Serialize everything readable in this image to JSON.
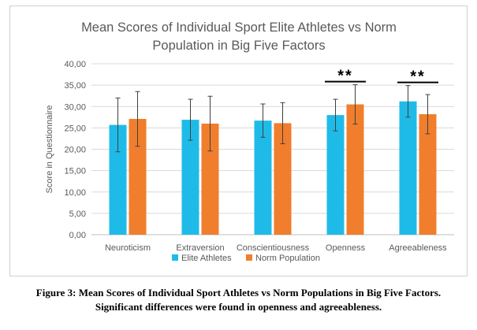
{
  "chart_data": {
    "type": "bar",
    "title_lines": [
      "Mean Scores of Individual Sport Elite Athletes vs Norm",
      "Population in Big Five Factors"
    ],
    "ylabel": "Score in Questionnaire",
    "xlabel": "",
    "categories": [
      "Neuroticism",
      "Extraversion",
      "Conscientiousness",
      "Openness",
      "Agreeableness"
    ],
    "series": [
      {
        "name": "Elite Athletes",
        "color": "#1fbbe8",
        "values": [
          25.7,
          26.9,
          26.7,
          28.0,
          31.2
        ],
        "error": [
          6.3,
          4.8,
          3.9,
          3.7,
          3.7
        ]
      },
      {
        "name": "Norm Population",
        "color": "#f07e2c",
        "values": [
          27.1,
          26.0,
          26.1,
          30.5,
          28.2
        ],
        "error": [
          6.4,
          6.4,
          4.8,
          4.6,
          4.6
        ]
      }
    ],
    "ylim": [
      0,
      40
    ],
    "yticks": [
      "0,00",
      "5,00",
      "10,00",
      "15,00",
      "20,00",
      "25,00",
      "30,00",
      "35,00",
      "40,00"
    ],
    "ytick_values": [
      0,
      5,
      10,
      15,
      20,
      25,
      30,
      35,
      40
    ],
    "grid": true,
    "legend_position": "bottom",
    "significance": [
      {
        "category": "Openness",
        "label": "**"
      },
      {
        "category": "Agreeableness",
        "label": "**"
      }
    ]
  },
  "caption": {
    "line1": "Figure 3: Mean Scores of Individual Sport Athletes vs Norm Populations in Big Five Factors.",
    "line2": "Significant differences were found in openness and agreeableness."
  }
}
